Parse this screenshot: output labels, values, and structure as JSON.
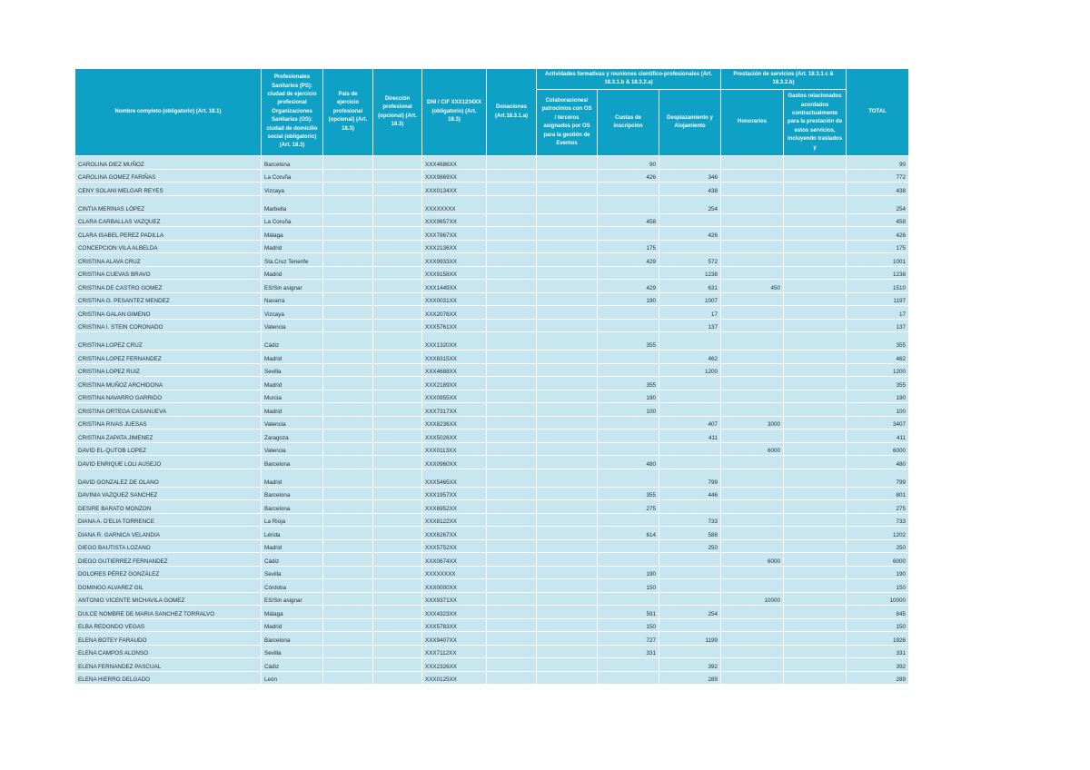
{
  "table": {
    "header": [
      "Nombre completo (obligatorio) (Art. 18.1)",
      "Profesionales Sanitarios (PS): ciudad de ejercicio profesional Organizaciones Sanitarias (OS): ciudad de domicilio social (obligatorio) (Art. 18.3)",
      "País de ejercicio profesional (opcional) (Art. 18.3)",
      "Dirección profesional (opcional) (Art. 18.3)",
      "DNI / CIF XXX1234XX (obligatorio) (Art. 18.3)",
      "Donaciones (Art.18.3.1.a)",
      {
        "label": "Actividades formativas y reuniones científico-profesionales (Art. 18.3.1.b & 18.3.2.a)",
        "columns": [
          "Colaboraciones/ patrocinios con OS / terceros asignados por OS para la gestión de Eventos",
          "Cuotas de inscripción",
          "Desplazamiento y Alojamiento"
        ]
      },
      {
        "label": "Prestación de servicios (Art. 18.3.1.c & 18.3.2.b)",
        "columns": [
          "Honorarios",
          "Gastos relacionados acordados contractualmente para la prestación de estos servicios, incluyendo traslados y"
        ]
      },
      "TOTAL"
    ],
    "rows": [
      [
        "CAROLINA DIEZ MUÑOZ",
        "Barcelona",
        null,
        null,
        "XXX4686XX",
        null,
        null,
        90,
        null,
        null,
        null,
        90
      ],
      [
        "CAROLINA GOMEZ FARIÑAS",
        "La Coruña",
        null,
        null,
        "XXX9869XX",
        null,
        null,
        426,
        346,
        null,
        null,
        772
      ],
      [
        "CENY SOLANI MELGAR REYES",
        "Vizcaya",
        null,
        null,
        "XXX0134XX",
        null,
        null,
        null,
        438,
        null,
        null,
        438
      ],
      [
        "CINTIA MERINAS LÓPEZ",
        "Marbella",
        null,
        null,
        "XXXXXXXX",
        null,
        null,
        null,
        254,
        null,
        null,
        254
      ],
      [
        "CLARA CARBALLAS VAZQUEZ",
        "La Coruña",
        null,
        null,
        "XXX9657XX",
        null,
        null,
        458,
        null,
        null,
        null,
        458
      ],
      [
        "CLARA ISABEL PEREZ PADILLA",
        "Málaga",
        null,
        null,
        "XXX7867XX",
        null,
        null,
        null,
        426,
        null,
        null,
        426
      ],
      [
        "CONCEPCION VILA ALBELDA",
        "Madrid",
        null,
        null,
        "XXX2136XX",
        null,
        null,
        175,
        null,
        null,
        null,
        175
      ],
      [
        "CRISTINA ALAVA CRUZ",
        "Sta.Cruz Tenerife",
        null,
        null,
        "XXX9933XX",
        null,
        null,
        429,
        572,
        null,
        null,
        1001
      ],
      [
        "CRISTINA CUEVAS BRAVO",
        "Madrid",
        null,
        null,
        "XXX9158XX",
        null,
        null,
        null,
        1238,
        null,
        null,
        1238
      ],
      [
        "CRISTINA DE CASTRO GOMEZ",
        "ES/Sin asignar",
        null,
        null,
        "XXX1449XX",
        null,
        null,
        429,
        631,
        450,
        null,
        1510
      ],
      [
        "CRISTINA G. PESANTEZ MENDEZ",
        "Navarra",
        null,
        null,
        "XXX0031XX",
        null,
        null,
        190,
        1007,
        null,
        null,
        1197
      ],
      [
        "CRISTINA GALAN GIMENO",
        "Vizcaya",
        null,
        null,
        "XXX2076XX",
        null,
        null,
        null,
        17,
        null,
        null,
        17
      ],
      [
        "CRISTINA I. STEIN CORONADO",
        "Valencia",
        null,
        null,
        "XXX5761XX",
        null,
        null,
        null,
        137,
        null,
        null,
        137
      ],
      [
        "CRISTINA LOPEZ CRUZ",
        "Cádiz",
        null,
        null,
        "XXX1320XX",
        null,
        null,
        355,
        null,
        null,
        null,
        355
      ],
      [
        "CRISTINA LOPEZ FERNANDEZ",
        "Madrid",
        null,
        null,
        "XXX8315XX",
        null,
        null,
        null,
        462,
        null,
        null,
        462
      ],
      [
        "CRISTINA LOPEZ RUIZ",
        "Sevilla",
        null,
        null,
        "XXX4688XX",
        null,
        null,
        null,
        1200,
        null,
        null,
        1200
      ],
      [
        "CRISTINA MUÑOZ ARCHIDONA",
        "Madrid",
        null,
        null,
        "XXX2189XX",
        null,
        null,
        355,
        null,
        null,
        null,
        355
      ],
      [
        "CRISTINA NAVARRO GARRIDO",
        "Murcia",
        null,
        null,
        "XXX0955XX",
        null,
        null,
        190,
        null,
        null,
        null,
        190
      ],
      [
        "CRISTINA ORTEGA CASANUEVA",
        "Madrid",
        null,
        null,
        "XXX7317XX",
        null,
        null,
        100,
        null,
        null,
        null,
        100
      ],
      [
        "CRISTINA RIVAS JUESAS",
        "Valencia",
        null,
        null,
        "XXX8236XX",
        null,
        null,
        null,
        407,
        3000,
        null,
        3407
      ],
      [
        "CRISTINA ZAPATA JIMENEZ",
        "Zaragoza",
        null,
        null,
        "XXX5026XX",
        null,
        null,
        null,
        411,
        null,
        null,
        411
      ],
      [
        "DAVID EL-QUTOB LOPEZ",
        "Valencia",
        null,
        null,
        "XXX0113XX",
        null,
        null,
        null,
        null,
        6000,
        null,
        6000
      ],
      [
        "DAVID ENRIQUE LOLI AUSEJO",
        "Barcelona",
        null,
        null,
        "XXX0960XX",
        null,
        null,
        480,
        null,
        null,
        null,
        480
      ],
      [
        "DAVID GONZALEZ DE OLANO",
        "Madrid",
        null,
        null,
        "XXX5465XX",
        null,
        null,
        null,
        799,
        null,
        null,
        799
      ],
      [
        "DAVINIA VAZQUEZ SANCHEZ",
        "Barcelona",
        null,
        null,
        "XXX1957XX",
        null,
        null,
        355,
        446,
        null,
        null,
        801
      ],
      [
        "DESIRE BARATO MONZON",
        "Barcelona",
        null,
        null,
        "XXX6952XX",
        null,
        null,
        275,
        null,
        null,
        null,
        275
      ],
      [
        "DIANA A. D'ELIA TORRENCE",
        "La Rioja",
        null,
        null,
        "XXX8122XX",
        null,
        null,
        null,
        733,
        null,
        null,
        733
      ],
      [
        "DIANA R. GARNICA VELANDIA",
        "Lérida",
        null,
        null,
        "XXX6267XX",
        null,
        null,
        614,
        588,
        null,
        null,
        1202
      ],
      [
        "DIEGO BAUTISTA LOZANO",
        "Madrid",
        null,
        null,
        "XXX5752XX",
        null,
        null,
        null,
        250,
        null,
        null,
        250
      ],
      [
        "DIEGO GUTIERREZ FERNANDEZ",
        "Cádiz",
        null,
        null,
        "XXX0674XX",
        null,
        null,
        null,
        null,
        6000,
        null,
        6000
      ],
      [
        "DOLORES PÉREZ GONZÁLEZ",
        "Sevilla",
        null,
        null,
        "XXXXXXXX",
        null,
        null,
        190,
        null,
        null,
        null,
        190
      ],
      [
        "DOMINGO ALVAREZ GIL",
        "Córdoba",
        null,
        null,
        "XXX0000XX",
        null,
        null,
        150,
        null,
        null,
        null,
        150
      ],
      [
        "ANTONIO VICENTE MICHAVILA GOMEZ",
        "ES/Sin asignar",
        null,
        null,
        "XXX9371XX",
        null,
        null,
        null,
        null,
        10000,
        null,
        10000
      ],
      [
        "DULCE NOMBRE DE MARIA SANCHEZ TORRALVO",
        "Málaga",
        null,
        null,
        "XXX4323XX",
        null,
        null,
        591,
        254,
        null,
        null,
        845
      ],
      [
        "ELBA REDONDO VEGAS",
        "Madrid",
        null,
        null,
        "XXX5783XX",
        null,
        null,
        150,
        null,
        null,
        null,
        150
      ],
      [
        "ELENA BOTEY FARAUDO",
        "Barcelona",
        null,
        null,
        "XXX9407XX",
        null,
        null,
        727,
        1199,
        null,
        null,
        1926
      ],
      [
        "ELENA CAMPOS ALONSO",
        "Sevilla",
        null,
        null,
        "XXX7112XX",
        null,
        null,
        331,
        null,
        null,
        null,
        331
      ],
      [
        "ELENA FERNANDEZ PASCUAL",
        "Cádiz",
        null,
        null,
        "XXX2326XX",
        null,
        null,
        null,
        392,
        null,
        null,
        392
      ],
      [
        "ELENA HIERRO DELGADO",
        "León",
        null,
        null,
        "XXX0125XX",
        null,
        null,
        null,
        289,
        null,
        null,
        289
      ]
    ]
  }
}
